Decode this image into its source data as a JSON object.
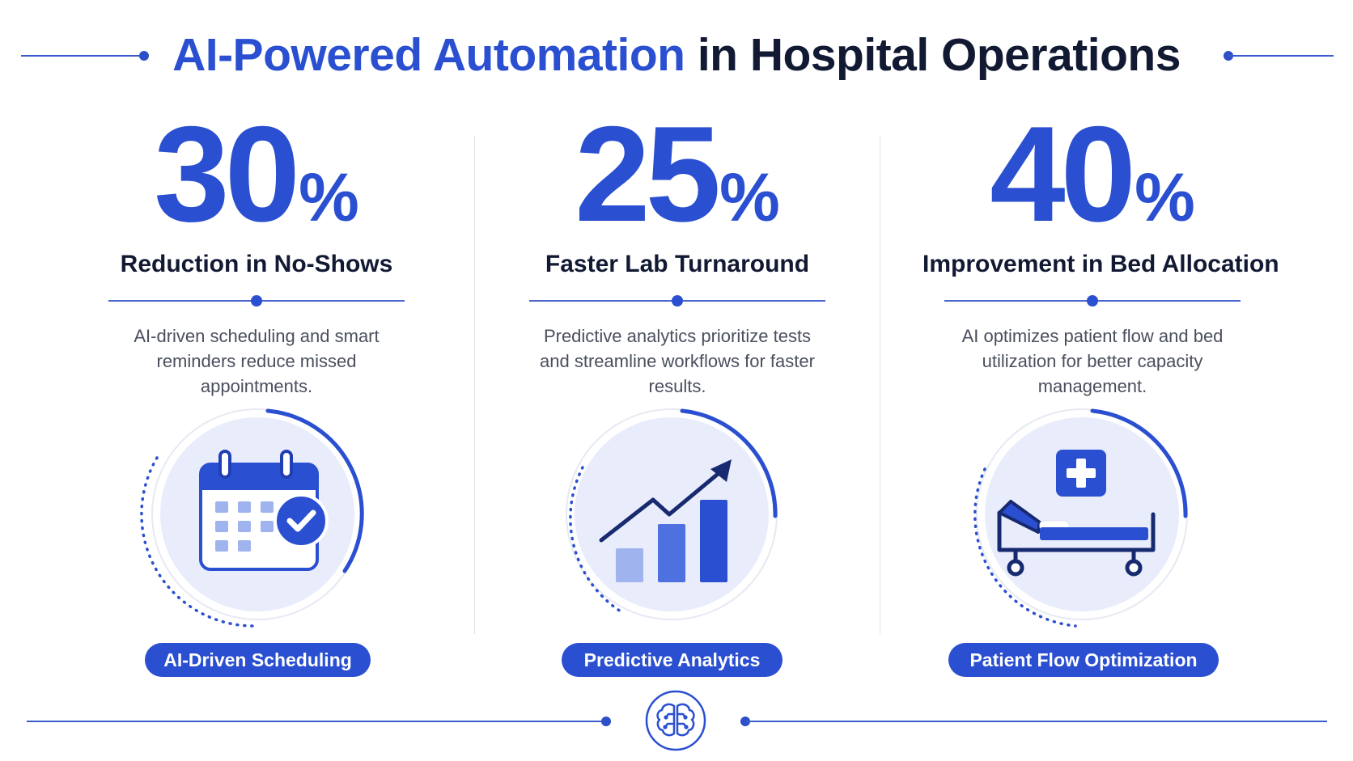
{
  "header": {
    "title_accent": "AI-Powered Automation",
    "title_rest": "in Hospital Operations"
  },
  "colors": {
    "accent": "#2a4fd0",
    "dark": "#121a33",
    "light_circle": "#e9edfb",
    "text_gray": "#4a4f5e"
  },
  "metrics": [
    {
      "value": "30",
      "unit": "%",
      "heading": "Reduction in No-Shows",
      "description": "AI-driven scheduling and smart reminders reduce missed appointments.",
      "icon": "calendar-check-icon",
      "pill": "AI-Driven Scheduling"
    },
    {
      "value": "25",
      "unit": "%",
      "heading": "Faster Lab Turnaround",
      "description": "Predictive analytics prioritize tests and streamline workflows for faster results.",
      "icon": "bar-chart-trend-icon",
      "pill": "Predictive Analytics"
    },
    {
      "value": "40",
      "unit": "%",
      "heading": "Improvement in Bed Allocation",
      "description": "AI optimizes patient flow and bed utilization for better capacity management.",
      "icon": "hospital-bed-icon",
      "pill": "Patient Flow Optimization"
    }
  ],
  "footer": {
    "icon": "brain-icon"
  }
}
